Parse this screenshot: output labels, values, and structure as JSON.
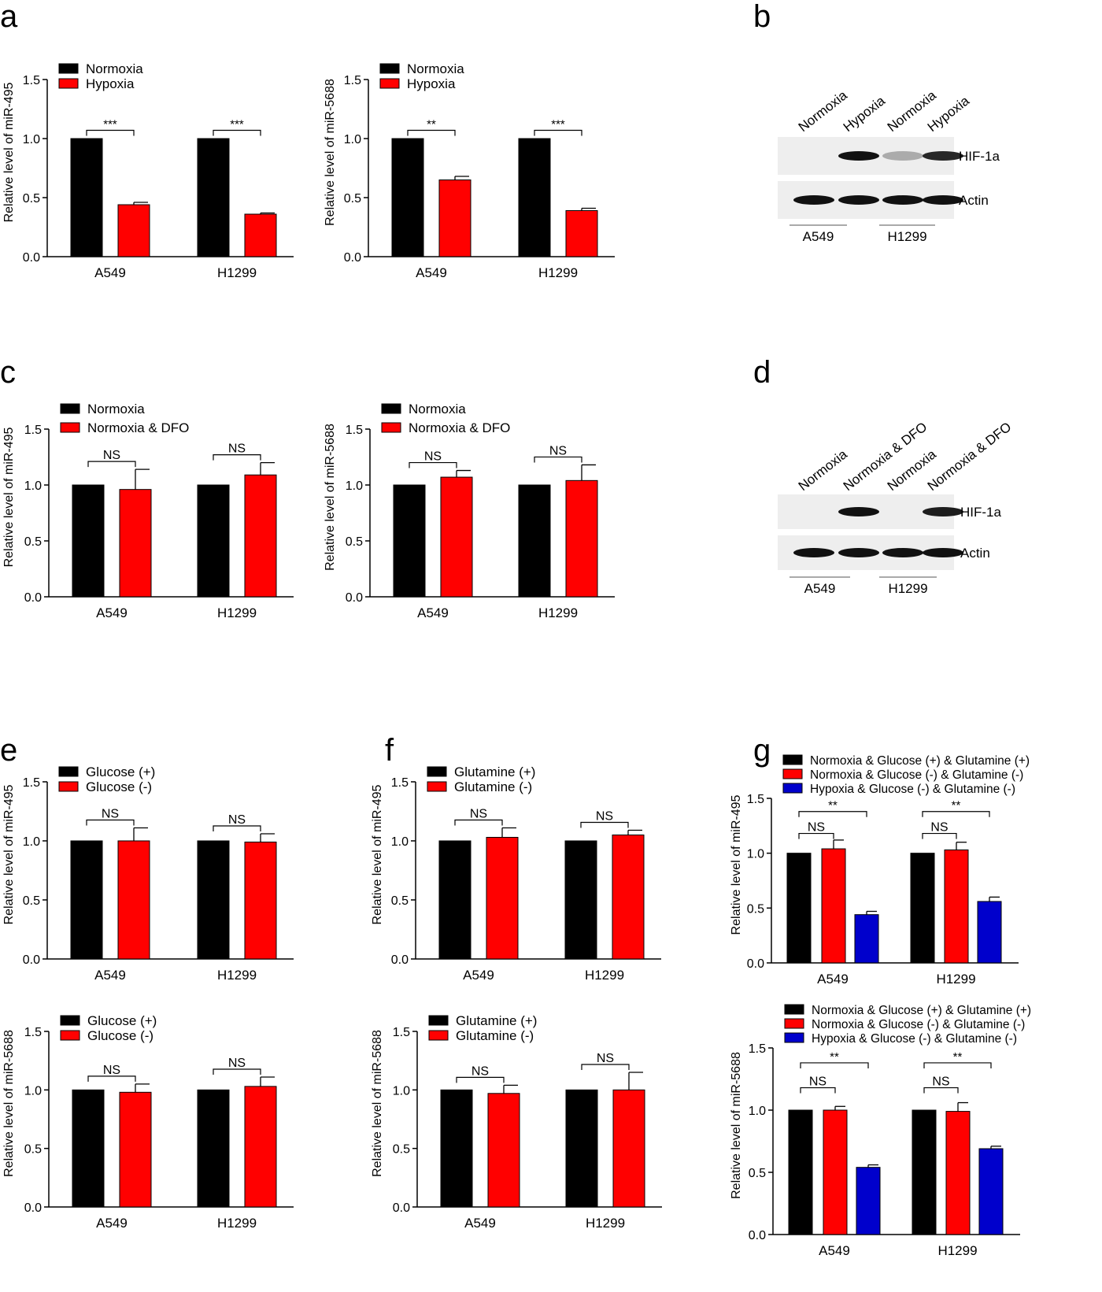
{
  "panel_letters": [
    "a",
    "b",
    "c",
    "d",
    "e",
    "f",
    "g"
  ],
  "colors": {
    "normoxia": "#000000",
    "hypoxia": "#ff0000",
    "third": "#0000cc",
    "axis": "#000000"
  },
  "blots": [
    {
      "lanes": [
        "Normoxia",
        "Hypoxia",
        "Normoxia",
        "Hypoxia"
      ],
      "rows": [
        {
          "label": "HIF-1a",
          "intensities": [
            0.0,
            1.0,
            0.3,
            0.9
          ]
        },
        {
          "label": "Actin",
          "intensities": [
            1.0,
            1.0,
            1.0,
            1.0
          ]
        }
      ],
      "groups": [
        "A549",
        "H1299"
      ]
    },
    {
      "lanes": [
        "Normoxia",
        "Normoxia & DFO",
        "Normoxia",
        "Normoxia & DFO"
      ],
      "rows": [
        {
          "label": "HIF-1a",
          "intensities": [
            0.0,
            1.0,
            0.0,
            0.95
          ]
        },
        {
          "label": "Actin",
          "intensities": [
            1.0,
            1.0,
            1.0,
            1.0
          ]
        }
      ],
      "groups": [
        "A549",
        "H1299"
      ]
    }
  ],
  "chart_data": [
    {
      "type": "bar",
      "categories": [
        "A549",
        "H1299"
      ],
      "ylabel": "Relative level of miR-495",
      "ylim": [
        0,
        1.5
      ],
      "yticks": [
        "0.0",
        "0.5",
        "1.0",
        "1.5"
      ],
      "series": [
        {
          "name": "Normoxia",
          "values": [
            1.0,
            1.0
          ],
          "errors": [
            0,
            0
          ]
        },
        {
          "name": "Hypoxia",
          "values": [
            0.44,
            0.36
          ],
          "errors": [
            0.02,
            0.01
          ]
        }
      ],
      "significance": [
        {
          "group": 0,
          "from": 0,
          "to": 1,
          "label": "***"
        },
        {
          "group": 1,
          "from": 0,
          "to": 1,
          "label": "***"
        }
      ]
    },
    {
      "type": "bar",
      "categories": [
        "A549",
        "H1299"
      ],
      "ylabel": "Relative level of miR-5688",
      "ylim": [
        0,
        1.5
      ],
      "yticks": [
        "0.0",
        "0.5",
        "1.0",
        "1.5"
      ],
      "series": [
        {
          "name": "Normoxia",
          "values": [
            1.0,
            1.0
          ],
          "errors": [
            0,
            0
          ]
        },
        {
          "name": "Hypoxia",
          "values": [
            0.65,
            0.39
          ],
          "errors": [
            0.03,
            0.02
          ]
        }
      ],
      "significance": [
        {
          "group": 0,
          "from": 0,
          "to": 1,
          "label": "**"
        },
        {
          "group": 1,
          "from": 0,
          "to": 1,
          "label": "***"
        }
      ]
    },
    {
      "type": "bar",
      "categories": [
        "A549",
        "H1299"
      ],
      "ylabel": "Relative level of miR-495",
      "ylim": [
        0,
        1.5
      ],
      "yticks": [
        "0.0",
        "0.5",
        "1.0",
        "1.5"
      ],
      "series": [
        {
          "name": "Normoxia",
          "values": [
            1.0,
            1.0
          ],
          "errors": [
            0,
            0
          ]
        },
        {
          "name": "Normoxia & DFO",
          "values": [
            0.96,
            1.09
          ],
          "errors": [
            0.18,
            0.11
          ]
        }
      ],
      "significance": [
        {
          "group": 0,
          "from": 0,
          "to": 1,
          "label": "NS"
        },
        {
          "group": 1,
          "from": 0,
          "to": 1,
          "label": "NS"
        }
      ]
    },
    {
      "type": "bar",
      "categories": [
        "A549",
        "H1299"
      ],
      "ylabel": "Relative level of miR-5688",
      "ylim": [
        0,
        1.5
      ],
      "yticks": [
        "0.0",
        "0.5",
        "1.0",
        "1.5"
      ],
      "series": [
        {
          "name": "Normoxia",
          "values": [
            1.0,
            1.0
          ],
          "errors": [
            0,
            0
          ]
        },
        {
          "name": "Normoxia & DFO",
          "values": [
            1.07,
            1.04
          ],
          "errors": [
            0.06,
            0.14
          ]
        }
      ],
      "significance": [
        {
          "group": 0,
          "from": 0,
          "to": 1,
          "label": "NS"
        },
        {
          "group": 1,
          "from": 0,
          "to": 1,
          "label": "NS"
        }
      ]
    },
    {
      "type": "bar",
      "categories": [
        "A549",
        "H1299"
      ],
      "ylabel": "Relative level of miR-495",
      "ylim": [
        0,
        1.5
      ],
      "yticks": [
        "0.0",
        "0.5",
        "1.0",
        "1.5"
      ],
      "series": [
        {
          "name": "Glucose (+)",
          "values": [
            1.0,
            1.0
          ],
          "errors": [
            0,
            0
          ]
        },
        {
          "name": "Glucose (-)",
          "values": [
            1.0,
            0.99
          ],
          "errors": [
            0.11,
            0.07
          ]
        }
      ],
      "significance": [
        {
          "group": 0,
          "from": 0,
          "to": 1,
          "label": "NS"
        },
        {
          "group": 1,
          "from": 0,
          "to": 1,
          "label": "NS"
        }
      ]
    },
    {
      "type": "bar",
      "categories": [
        "A549",
        "H1299"
      ],
      "ylabel": "Relative level of miR-495",
      "ylim": [
        0,
        1.5
      ],
      "yticks": [
        "0.0",
        "0.5",
        "1.0",
        "1.5"
      ],
      "series": [
        {
          "name": "Glutamine (+)",
          "values": [
            1.0,
            1.0
          ],
          "errors": [
            0,
            0
          ]
        },
        {
          "name": "Glutamine (-)",
          "values": [
            1.03,
            1.05
          ],
          "errors": [
            0.08,
            0.04
          ]
        }
      ],
      "significance": [
        {
          "group": 0,
          "from": 0,
          "to": 1,
          "label": "NS"
        },
        {
          "group": 1,
          "from": 0,
          "to": 1,
          "label": "NS"
        }
      ]
    },
    {
      "type": "bar",
      "categories": [
        "A549",
        "H1299"
      ],
      "ylabel": "Relative level of miR-495",
      "ylim": [
        0,
        1.5
      ],
      "yticks": [
        "0.0",
        "0.5",
        "1.0",
        "1.5"
      ],
      "series": [
        {
          "name": "Normoxia & Glucose (+) & Glutamine (+)",
          "values": [
            1.0,
            1.0
          ],
          "errors": [
            0,
            0
          ]
        },
        {
          "name": "Normoxia & Glucose (-) & Glutamine (-)",
          "values": [
            1.04,
            1.03
          ],
          "errors": [
            0.08,
            0.07
          ]
        },
        {
          "name": "Hypoxia & Glucose (-) & Glutamine (-)",
          "values": [
            0.44,
            0.56
          ],
          "errors": [
            0.03,
            0.04
          ]
        }
      ],
      "significance": [
        {
          "group": 0,
          "from": 0,
          "to": 1,
          "label": "NS"
        },
        {
          "group": 0,
          "from": 0,
          "to": 2,
          "label": "**"
        },
        {
          "group": 1,
          "from": 0,
          "to": 1,
          "label": "NS"
        },
        {
          "group": 1,
          "from": 0,
          "to": 2,
          "label": "**"
        }
      ]
    },
    {
      "type": "bar",
      "categories": [
        "A549",
        "H1299"
      ],
      "ylabel": "Relative level of miR-5688",
      "ylim": [
        0,
        1.5
      ],
      "yticks": [
        "0.0",
        "0.5",
        "1.0",
        "1.5"
      ],
      "series": [
        {
          "name": "Glucose (+)",
          "values": [
            1.0,
            1.0
          ],
          "errors": [
            0,
            0
          ]
        },
        {
          "name": "Glucose (-)",
          "values": [
            0.98,
            1.03
          ],
          "errors": [
            0.07,
            0.08
          ]
        }
      ],
      "significance": [
        {
          "group": 0,
          "from": 0,
          "to": 1,
          "label": "NS"
        },
        {
          "group": 1,
          "from": 0,
          "to": 1,
          "label": "NS"
        }
      ]
    },
    {
      "type": "bar",
      "categories": [
        "A549",
        "H1299"
      ],
      "ylabel": "Relative level of miR-5688",
      "ylim": [
        0,
        1.5
      ],
      "yticks": [
        "0.0",
        "0.5",
        "1.0",
        "1.5"
      ],
      "series": [
        {
          "name": "Glutamine (+)",
          "values": [
            1.0,
            1.0
          ],
          "errors": [
            0,
            0
          ]
        },
        {
          "name": "Glutamine (-)",
          "values": [
            0.97,
            1.0
          ],
          "errors": [
            0.07,
            0.15
          ]
        }
      ],
      "significance": [
        {
          "group": 0,
          "from": 0,
          "to": 1,
          "label": "NS"
        },
        {
          "group": 1,
          "from": 0,
          "to": 1,
          "label": "NS"
        }
      ]
    },
    {
      "type": "bar",
      "categories": [
        "A549",
        "H1299"
      ],
      "ylabel": "Relative level of miR-5688",
      "ylim": [
        0,
        1.5
      ],
      "yticks": [
        "0.0",
        "0.5",
        "1.0",
        "1.5"
      ],
      "series": [
        {
          "name": "Normoxia & Glucose (+) & Glutamine (+)",
          "values": [
            1.0,
            1.0
          ],
          "errors": [
            0,
            0
          ]
        },
        {
          "name": "Normoxia & Glucose (-) & Glutamine (-)",
          "values": [
            1.0,
            0.99
          ],
          "errors": [
            0.03,
            0.07
          ]
        },
        {
          "name": "Hypoxia & Glucose (-) & Glutamine (-)",
          "values": [
            0.54,
            0.69
          ],
          "errors": [
            0.02,
            0.02
          ]
        }
      ],
      "significance": [
        {
          "group": 0,
          "from": 0,
          "to": 1,
          "label": "NS"
        },
        {
          "group": 0,
          "from": 0,
          "to": 2,
          "label": "**"
        },
        {
          "group": 1,
          "from": 0,
          "to": 1,
          "label": "NS"
        },
        {
          "group": 1,
          "from": 0,
          "to": 2,
          "label": "**"
        }
      ]
    }
  ]
}
